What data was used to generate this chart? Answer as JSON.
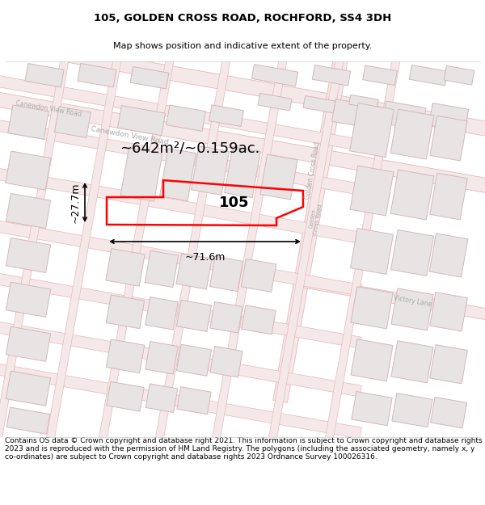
{
  "title": "105, GOLDEN CROSS ROAD, ROCHFORD, SS4 3DH",
  "subtitle": "Map shows position and indicative extent of the property.",
  "footer": "Contains OS data © Crown copyright and database right 2021. This information is subject to Crown copyright and database rights 2023 and is reproduced with the permission of HM Land Registry. The polygons (including the associated geometry, namely x, y co-ordinates) are subject to Crown copyright and database rights 2023 Ordnance Survey 100026316.",
  "area_text": "~642m²/~0.159ac.",
  "width_text": "~71.6m",
  "height_text": "~27.7m",
  "label_105": "105",
  "map_bg": "#f7f4f2",
  "road_fill": "#f5e8e8",
  "road_edge": "#e8b8b8",
  "building_fill": "#e8e4e4",
  "building_edge": "#d4b8b8",
  "road_label_color": "#aaaaaa",
  "highlight_color": "#ff0000",
  "title_fontsize": 9.5,
  "subtitle_fontsize": 8,
  "footer_fontsize": 6.5,
  "area_fontsize": 13,
  "label_fontsize": 13,
  "dim_fontsize": 9
}
